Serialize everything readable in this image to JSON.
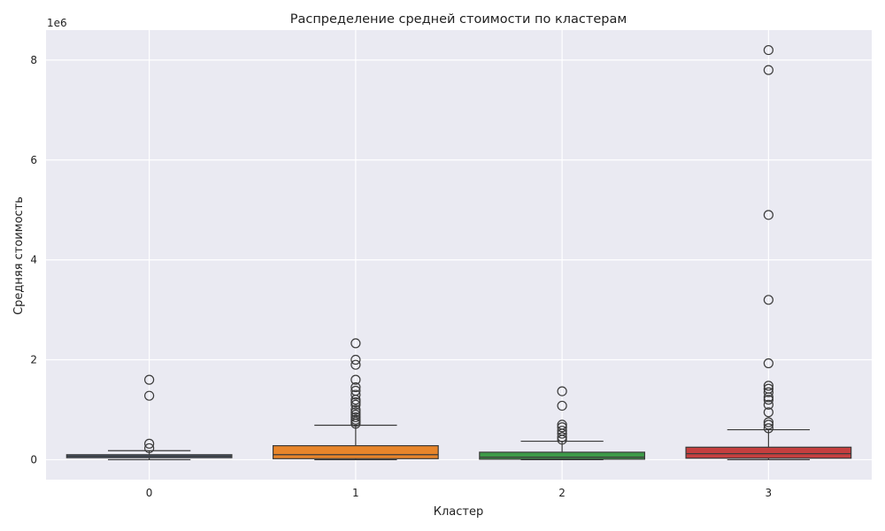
{
  "chart_data": {
    "type": "box",
    "title": "Распределение средней стоимости по кластерам",
    "xlabel": "Кластер",
    "ylabel": "Средняя стоимость",
    "y_offset_label": "1e6",
    "ylim": [
      -400000,
      8600000
    ],
    "yticks": [
      0,
      2000000,
      4000000,
      6000000,
      8000000
    ],
    "ytick_labels": [
      "0",
      "2",
      "4",
      "6",
      "8"
    ],
    "grid": true,
    "categories": [
      "0",
      "1",
      "2",
      "3"
    ],
    "boxes": [
      {
        "category": "0",
        "color": "#4c6180",
        "whisker_low": 0,
        "q1": 40000,
        "median": 70000,
        "q3": 100000,
        "whisker_high": 180000,
        "outliers": [
          230000,
          320000,
          1280000,
          1600000
        ]
      },
      {
        "category": "1",
        "color": "#e8852a",
        "whisker_low": 0,
        "q1": 20000,
        "median": 100000,
        "q3": 280000,
        "whisker_high": 690000,
        "outliers": [
          720000,
          760000,
          800000,
          850000,
          900000,
          950000,
          1000000,
          1100000,
          1150000,
          1200000,
          1300000,
          1380000,
          1450000,
          1600000,
          1900000,
          2000000,
          2330000
        ]
      },
      {
        "category": "2",
        "color": "#3d9a48",
        "whisker_low": 0,
        "q1": 10000,
        "median": 50000,
        "q3": 150000,
        "whisker_high": 370000,
        "outliers": [
          400000,
          450000,
          520000,
          580000,
          650000,
          700000,
          1080000,
          1370000
        ]
      },
      {
        "category": "3",
        "color": "#c43f3f",
        "whisker_low": 0,
        "q1": 30000,
        "median": 120000,
        "q3": 250000,
        "whisker_high": 600000,
        "outliers": [
          630000,
          700000,
          750000,
          950000,
          1100000,
          1200000,
          1250000,
          1350000,
          1420000,
          1480000,
          1930000,
          3200000,
          4900000,
          7800000,
          8200000
        ]
      }
    ]
  }
}
